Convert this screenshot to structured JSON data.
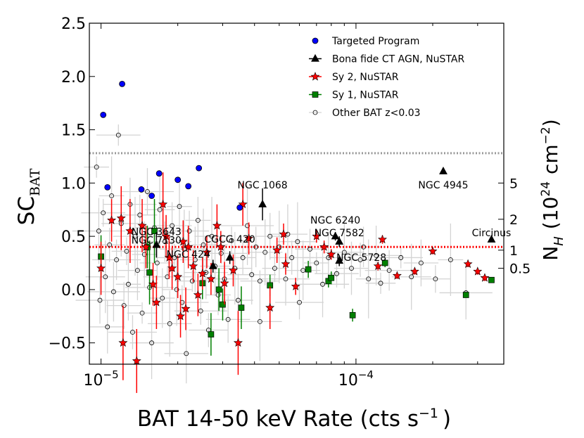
{
  "chart_data": {
    "type": "scatter",
    "xlabel_main": "BAT 14-50 keV Rate (cts s",
    "xlabel_sup": "−1",
    "xlabel_close": ")",
    "ylabel_main": "SC",
    "ylabel_sub": "BAT",
    "y2label_main": "N",
    "y2label_sub": "H",
    "y2label_rest": "(10",
    "y2label_exp": "24",
    "y2label_unit": "cm",
    "y2label_unitexp": "−2",
    "y2label_close": ")",
    "xscale": "log",
    "xlim": [
      9e-06,
      0.00038
    ],
    "ylim": [
      -0.7,
      2.5
    ],
    "xticks": [
      {
        "value": 1e-05,
        "base": "10",
        "exp": "−5"
      },
      {
        "value": 0.0001,
        "base": "10",
        "exp": "−4"
      }
    ],
    "yticks": [
      {
        "value": 2.5,
        "label": "2.5"
      },
      {
        "value": 2.0,
        "label": "2.0"
      },
      {
        "value": 1.5,
        "label": "1.5"
      },
      {
        "value": 1.0,
        "label": "1.0"
      },
      {
        "value": 0.5,
        "label": "0.5"
      },
      {
        "value": 0.0,
        "label": "0.0"
      },
      {
        "value": -0.5,
        "label": "−0.5"
      }
    ],
    "nh_ticks": [
      {
        "sc": 1.0,
        "label": "5"
      },
      {
        "sc": 0.66,
        "label": "2"
      },
      {
        "sc": 0.37,
        "label": "1"
      },
      {
        "sc": 0.2,
        "label": "0.5"
      }
    ],
    "hlines": [
      {
        "y": 1.28,
        "color": "#999999",
        "style": "dotted"
      },
      {
        "y": 0.4,
        "color": "#ff0000",
        "style": "dotted"
      }
    ],
    "legend": {
      "placement": "top-right",
      "entries": [
        {
          "label": "Targeted Program",
          "series": "targeted"
        },
        {
          "label": "Bona fide CT AGN, NuSTAR",
          "series": "ctagn"
        },
        {
          "label": "Sy 2, NuSTAR",
          "series": "sy2"
        },
        {
          "label": "Sy 1, NuSTAR",
          "series": "sy1"
        },
        {
          "label": "Other BAT z<0.03",
          "series": "other"
        }
      ]
    },
    "series": [
      {
        "name": "Targeted Program",
        "id": "targeted",
        "marker": "circle",
        "color": "#0000ff",
        "points": [
          {
            "x": 1.02e-05,
            "y": 1.64
          },
          {
            "x": 1.06e-05,
            "y": 0.96
          },
          {
            "x": 1.21e-05,
            "y": 1.93
          },
          {
            "x": 1.44e-05,
            "y": 0.94
          },
          {
            "x": 1.58e-05,
            "y": 0.88
          },
          {
            "x": 1.69e-05,
            "y": 1.09
          },
          {
            "x": 2e-05,
            "y": 1.03
          },
          {
            "x": 2.2e-05,
            "y": 0.97
          },
          {
            "x": 2.42e-05,
            "y": 1.14
          },
          {
            "x": 3.5e-05,
            "y": 0.77
          }
        ]
      },
      {
        "name": "Bona fide CT AGN, NuSTAR",
        "id": "ctagn",
        "marker": "triangle",
        "color": "#000000",
        "points": [
          {
            "x": 1.65e-05,
            "y": 0.42,
            "ey": 0.12
          },
          {
            "x": 2.75e-05,
            "y": 0.22,
            "ey": 0.06
          },
          {
            "x": 3.2e-05,
            "y": 0.3,
            "ey": 0.06
          },
          {
            "x": 4.3e-05,
            "y": 0.8,
            "ey": 0.15
          },
          {
            "x": 8.3e-05,
            "y": 0.5,
            "ey": 0.04
          },
          {
            "x": 8.6e-05,
            "y": 0.45,
            "ey": 0.05
          },
          {
            "x": 8.6e-05,
            "y": 0.27,
            "ey": 0.05
          },
          {
            "x": 0.00022,
            "y": 1.11,
            "ey": 0.02
          },
          {
            "x": 0.00034,
            "y": 0.47,
            "ey": 0.02
          }
        ]
      },
      {
        "name": "Sy 2, NuSTAR",
        "id": "sy2",
        "marker": "star",
        "color": "#ff0000",
        "points": [
          {
            "x": 1e-05,
            "y": 0.2,
            "ey": 0.25
          },
          {
            "x": 1.1e-05,
            "y": 0.65,
            "ey": 0.2
          },
          {
            "x": 1.2e-05,
            "y": 0.67,
            "ey": 0.3
          },
          {
            "x": 1.22e-05,
            "y": -0.5,
            "ey": 0.35
          },
          {
            "x": 1.3e-05,
            "y": 0.55,
            "ey": 0.3
          },
          {
            "x": 1.38e-05,
            "y": -0.67,
            "ey": 0.3
          },
          {
            "x": 1.45e-05,
            "y": 0.6,
            "ey": 0.25
          },
          {
            "x": 1.5e-05,
            "y": 0.4,
            "ey": 0.2
          },
          {
            "x": 1.6e-05,
            "y": 0.05,
            "ey": 0.2
          },
          {
            "x": 1.65e-05,
            "y": -0.12,
            "ey": 0.25
          },
          {
            "x": 1.75e-05,
            "y": 0.8,
            "ey": 0.3
          },
          {
            "x": 1.8e-05,
            "y": 0.5,
            "ey": 0.2
          },
          {
            "x": 1.85e-05,
            "y": 0.3,
            "ey": 0.2
          },
          {
            "x": 1.9e-05,
            "y": 0.2,
            "ey": 0.2
          },
          {
            "x": 2e-05,
            "y": 0.12,
            "ey": 0.2
          },
          {
            "x": 2.05e-05,
            "y": -0.25,
            "ey": 0.2
          },
          {
            "x": 2.1e-05,
            "y": 0.45,
            "ey": 0.2
          },
          {
            "x": 2.15e-05,
            "y": -0.18,
            "ey": 0.2
          },
          {
            "x": 2.2e-05,
            "y": 0.4,
            "ey": 0.2
          },
          {
            "x": 2.3e-05,
            "y": 0.22,
            "ey": 0.15
          },
          {
            "x": 2.4e-05,
            "y": -0.05,
            "ey": 0.2
          },
          {
            "x": 2.5e-05,
            "y": 0.15,
            "ey": 0.15
          },
          {
            "x": 2.6e-05,
            "y": 0.35,
            "ey": 0.15
          },
          {
            "x": 2.7e-05,
            "y": 0.1,
            "ey": 0.15
          },
          {
            "x": 2.85e-05,
            "y": 0.6,
            "ey": 0.2
          },
          {
            "x": 2.95e-05,
            "y": 0.4,
            "ey": 0.15
          },
          {
            "x": 3.05e-05,
            "y": 0.06,
            "ey": 0.2
          },
          {
            "x": 3.3e-05,
            "y": 0.18,
            "ey": 0.15
          },
          {
            "x": 3.45e-05,
            "y": -0.5,
            "ey": 0.3
          },
          {
            "x": 3.6e-05,
            "y": 0.8,
            "ey": 0.2
          },
          {
            "x": 3.8e-05,
            "y": 0.48,
            "ey": 0.15
          },
          {
            "x": 4.6e-05,
            "y": -0.17,
            "ey": 0.2
          },
          {
            "x": 4.9e-05,
            "y": 0.37,
            "ey": 0.12
          },
          {
            "x": 5.2e-05,
            "y": 0.52,
            "ey": 0.1
          },
          {
            "x": 5.3e-05,
            "y": 0.24,
            "ey": 0.1
          },
          {
            "x": 5.8e-05,
            "y": 0.03,
            "ey": 0.08
          },
          {
            "x": 7e-05,
            "y": 0.5,
            "ey": 0.06
          },
          {
            "x": 7.5e-05,
            "y": 0.4,
            "ey": 0.06
          },
          {
            "x": 8e-05,
            "y": 0.33,
            "ey": 0.05
          },
          {
            "x": 0.000122,
            "y": 0.22,
            "ey": 0.04
          },
          {
            "x": 0.000127,
            "y": 0.47,
            "ey": 0.04
          },
          {
            "x": 0.000145,
            "y": 0.13,
            "ey": 0.03
          },
          {
            "x": 0.00017,
            "y": 0.17,
            "ey": 0.03
          },
          {
            "x": 0.0002,
            "y": 0.36,
            "ey": 0.03
          },
          {
            "x": 0.000275,
            "y": 0.24,
            "ey": 0.03
          },
          {
            "x": 0.0003,
            "y": 0.17,
            "ey": 0.03
          },
          {
            "x": 0.00032,
            "y": 0.11,
            "ey": 0.03
          }
        ]
      },
      {
        "name": "Sy 1, NuSTAR",
        "id": "sy1",
        "marker": "square",
        "color": "#008000",
        "points": [
          {
            "x": 1e-05,
            "y": 0.31,
            "ey": 0.2
          },
          {
            "x": 1.52e-05,
            "y": 0.4,
            "ey": 0.2
          },
          {
            "x": 1.55e-05,
            "y": 0.16,
            "ey": 0.3
          },
          {
            "x": 1.62e-05,
            "y": 0.55,
            "ey": 0.3
          },
          {
            "x": 2.5e-05,
            "y": 0.06,
            "ey": 0.15
          },
          {
            "x": 2.7e-05,
            "y": -0.42,
            "ey": 0.2
          },
          {
            "x": 2.9e-05,
            "y": 0.0,
            "ey": 0.2
          },
          {
            "x": 3e-05,
            "y": -0.14,
            "ey": 0.15
          },
          {
            "x": 3.55e-05,
            "y": -0.17,
            "ey": 0.2
          },
          {
            "x": 4.6e-05,
            "y": 0.04,
            "ey": 0.1
          },
          {
            "x": 6.5e-05,
            "y": 0.19,
            "ey": 0.08
          },
          {
            "x": 7.8e-05,
            "y": 0.08,
            "ey": 0.06
          },
          {
            "x": 8e-05,
            "y": 0.11,
            "ey": 0.06
          },
          {
            "x": 9.7e-05,
            "y": -0.24,
            "ey": 0.06
          },
          {
            "x": 0.00013,
            "y": 0.25,
            "ey": 0.04
          },
          {
            "x": 0.00027,
            "y": -0.05,
            "ey": 0.02
          },
          {
            "x": 0.00034,
            "y": 0.09,
            "ey": 0.02
          }
        ]
      },
      {
        "name": "Other BAT z<0.03",
        "id": "other",
        "marker": "open-circle",
        "color": "#000000",
        "points": [
          {
            "x": 9.6e-06,
            "y": 1.15
          },
          {
            "x": 9.8e-06,
            "y": 0.55
          },
          {
            "x": 9.9e-06,
            "y": -0.1
          },
          {
            "x": 1.02e-05,
            "y": 0.72
          },
          {
            "x": 1.04e-05,
            "y": 0.12
          },
          {
            "x": 1.06e-05,
            "y": -0.35
          },
          {
            "x": 1.08e-05,
            "y": 0.42
          },
          {
            "x": 1.1e-05,
            "y": 0.88
          },
          {
            "x": 1.12e-05,
            "y": -0.02
          },
          {
            "x": 1.15e-05,
            "y": 0.28
          },
          {
            "x": 1.17e-05,
            "y": 1.45
          },
          {
            "x": 1.2e-05,
            "y": 0.62
          },
          {
            "x": 1.23e-05,
            "y": -0.15
          },
          {
            "x": 1.26e-05,
            "y": 0.36
          },
          {
            "x": 1.28e-05,
            "y": 0.05
          },
          {
            "x": 1.3e-05,
            "y": 0.8
          },
          {
            "x": 1.33e-05,
            "y": -0.4
          },
          {
            "x": 1.36e-05,
            "y": 0.5
          },
          {
            "x": 1.39e-05,
            "y": 0.18
          },
          {
            "x": 1.42e-05,
            "y": 0.7
          },
          {
            "x": 1.45e-05,
            "y": -0.22
          },
          {
            "x": 1.48e-05,
            "y": 0.33
          },
          {
            "x": 1.52e-05,
            "y": 0.92
          },
          {
            "x": 1.55e-05,
            "y": 0.02
          },
          {
            "x": 1.58e-05,
            "y": -0.5
          },
          {
            "x": 1.62e-05,
            "y": 0.58
          },
          {
            "x": 1.66e-05,
            "y": 0.25
          },
          {
            "x": 1.7e-05,
            "y": 0.75
          },
          {
            "x": 1.74e-05,
            "y": -0.08
          },
          {
            "x": 1.78e-05,
            "y": 0.45
          },
          {
            "x": 1.82e-05,
            "y": 0.12
          },
          {
            "x": 1.86e-05,
            "y": -0.32
          },
          {
            "x": 1.9e-05,
            "y": 0.6
          },
          {
            "x": 1.94e-05,
            "y": 0.3
          },
          {
            "x": 1.98e-05,
            "y": 0.0
          },
          {
            "x": 2.03e-05,
            "y": 0.78
          },
          {
            "x": 2.08e-05,
            "y": -0.12
          },
          {
            "x": 2.12e-05,
            "y": 0.38
          },
          {
            "x": 2.16e-05,
            "y": -0.6
          },
          {
            "x": 2.22e-05,
            "y": 0.55
          },
          {
            "x": 2.28e-05,
            "y": 0.08
          },
          {
            "x": 2.34e-05,
            "y": 0.28
          },
          {
            "x": 2.4e-05,
            "y": 0.65
          },
          {
            "x": 2.46e-05,
            "y": -0.2
          },
          {
            "x": 2.52e-05,
            "y": 0.42
          },
          {
            "x": 2.58e-05,
            "y": 0.16
          },
          {
            "x": 2.64e-05,
            "y": -0.38
          },
          {
            "x": 2.72e-05,
            "y": 0.5
          },
          {
            "x": 2.8e-05,
            "y": 0.22
          },
          {
            "x": 2.88e-05,
            "y": -0.05
          },
          {
            "x": 2.96e-05,
            "y": 0.34
          },
          {
            "x": 3.05e-05,
            "y": 0.1
          },
          {
            "x": 3.15e-05,
            "y": -0.28
          },
          {
            "x": 3.25e-05,
            "y": 0.46
          },
          {
            "x": 3.35e-05,
            "y": 0.2
          },
          {
            "x": 3.45e-05,
            "y": -0.1
          },
          {
            "x": 3.6e-05,
            "y": 0.3
          },
          {
            "x": 3.75e-05,
            "y": 0.6
          },
          {
            "x": 3.9e-05,
            "y": 0.14
          },
          {
            "x": 4.05e-05,
            "y": 0.4
          },
          {
            "x": 4.2e-05,
            "y": 0.08
          },
          {
            "x": 4.4e-05,
            "y": 0.35
          },
          {
            "x": 4.6e-05,
            "y": 0.5
          },
          {
            "x": 4.8e-05,
            "y": 0.2
          },
          {
            "x": 5e-05,
            "y": 0.4
          },
          {
            "x": 5.3e-05,
            "y": 0.1
          },
          {
            "x": 5.6e-05,
            "y": 0.3
          },
          {
            "x": 5.9e-05,
            "y": 0.45
          },
          {
            "x": 6.2e-05,
            "y": 0.18
          },
          {
            "x": 6.6e-05,
            "y": 0.38
          },
          {
            "x": 7e-05,
            "y": 0.25
          },
          {
            "x": 7.4e-05,
            "y": 0.05
          },
          {
            "x": 7.8e-05,
            "y": 0.3
          },
          {
            "x": 8.4e-05,
            "y": 0.15
          },
          {
            "x": 9e-05,
            "y": 0.35
          },
          {
            "x": 9.6e-05,
            "y": 0.2
          },
          {
            "x": 0.000104,
            "y": 0.28
          },
          {
            "x": 0.000112,
            "y": 0.1
          },
          {
            "x": 0.00012,
            "y": 0.32
          },
          {
            "x": 0.000135,
            "y": 0.18
          },
          {
            "x": 0.00015,
            "y": 0.3
          },
          {
            "x": 0.000165,
            "y": 0.12
          },
          {
            "x": 0.00018,
            "y": 0.25
          },
          {
            "x": 0.000205,
            "y": 0.1
          },
          {
            "x": 0.000235,
            "y": 0.28
          },
          {
            "x": 0.00027,
            "y": -0.03
          },
          {
            "x": 6e-05,
            "y": -0.12
          },
          {
            "x": 4.2e-05,
            "y": -0.3
          },
          {
            "x": 5.4e-05,
            "y": 0.52
          },
          {
            "x": 0.000107,
            "y": 0.4
          },
          {
            "x": 0.000125,
            "y": 0.06
          }
        ]
      }
    ],
    "annotations": [
      {
        "text": "NGC 1068",
        "x": 4.3e-05,
        "y": 0.95
      },
      {
        "text": "NGC 4945",
        "x": 0.00022,
        "y": 0.95
      },
      {
        "text": "NGC 6240",
        "x": 8.3e-05,
        "y": 0.62
      },
      {
        "text": "NGC 7582",
        "x": 8.6e-05,
        "y": 0.5
      },
      {
        "text": "Circinus",
        "x": 0.00034,
        "y": 0.5
      },
      {
        "text": "NGC 3643",
        "x": 1.65e-05,
        "y": 0.51
      },
      {
        "text": "NGC 7130",
        "x": 1.65e-05,
        "y": 0.43
      },
      {
        "text": "CGCG 420",
        "x": 3.2e-05,
        "y": 0.44
      },
      {
        "text": "NGC 424",
        "x": 2.2e-05,
        "y": 0.3
      },
      {
        "text": "NGC 5728",
        "x": 0.000105,
        "y": 0.27
      }
    ]
  }
}
